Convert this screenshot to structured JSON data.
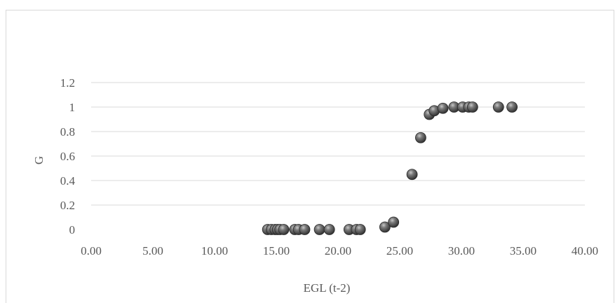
{
  "chart_data": {
    "type": "scatter",
    "title": "",
    "xlabel": "EGL (t-2)",
    "ylabel": "G",
    "xlim": [
      0,
      40
    ],
    "ylim": [
      0,
      1.2
    ],
    "x_ticks": [
      "0.00",
      "5.00",
      "10.00",
      "15.00",
      "20.00",
      "25.00",
      "30.00",
      "35.00",
      "40.00"
    ],
    "y_ticks": [
      "0",
      "0.2",
      "0.4",
      "0.6",
      "0.8",
      "1",
      "1.2"
    ],
    "grid": "horizontal",
    "marker_color": "#4d4d4d",
    "series": [
      {
        "points": [
          [
            14.3,
            0.0
          ],
          [
            14.6,
            0.0
          ],
          [
            14.9,
            0.0
          ],
          [
            15.1,
            0.0
          ],
          [
            15.3,
            0.0
          ],
          [
            15.6,
            0.0
          ],
          [
            16.5,
            0.0
          ],
          [
            16.8,
            0.0
          ],
          [
            17.3,
            0.0
          ],
          [
            18.5,
            0.0
          ],
          [
            19.3,
            0.0
          ],
          [
            20.9,
            0.0
          ],
          [
            21.5,
            0.0
          ],
          [
            21.8,
            0.0
          ],
          [
            23.8,
            0.02
          ],
          [
            24.5,
            0.06
          ],
          [
            26.0,
            0.45
          ],
          [
            26.7,
            0.75
          ],
          [
            27.4,
            0.94
          ],
          [
            27.8,
            0.97
          ],
          [
            28.5,
            0.99
          ],
          [
            29.4,
            1.0
          ],
          [
            30.1,
            1.0
          ],
          [
            30.6,
            1.0
          ],
          [
            30.9,
            1.0
          ],
          [
            33.0,
            1.0
          ],
          [
            34.1,
            1.0
          ]
        ]
      }
    ]
  }
}
